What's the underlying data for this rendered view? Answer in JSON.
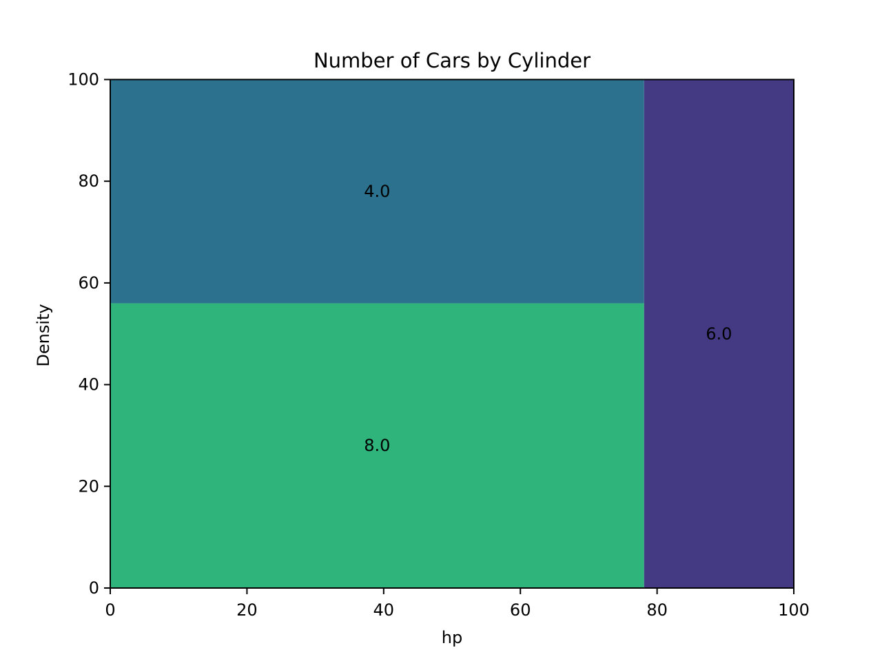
{
  "chart_data": {
    "type": "treemap",
    "title": "Number of Cars by Cylinder",
    "xlabel": "hp",
    "ylabel": "Density",
    "xlim": [
      0,
      100
    ],
    "ylim": [
      0,
      100
    ],
    "xticks": [
      "0",
      "20",
      "40",
      "60",
      "80",
      "100"
    ],
    "yticks": [
      "0",
      "20",
      "40",
      "60",
      "80",
      "100"
    ],
    "rects": [
      {
        "label": "8.0",
        "x0": 0,
        "x1": 78.1,
        "y0": 0,
        "y1": 56.0,
        "color": "#2fb47c"
      },
      {
        "label": "4.0",
        "x0": 0,
        "x1": 78.1,
        "y0": 56.0,
        "y1": 100,
        "color": "#2c728e"
      },
      {
        "label": "6.0",
        "x0": 78.1,
        "x1": 100,
        "y0": 0,
        "y1": 100,
        "color": "#443983"
      }
    ]
  }
}
